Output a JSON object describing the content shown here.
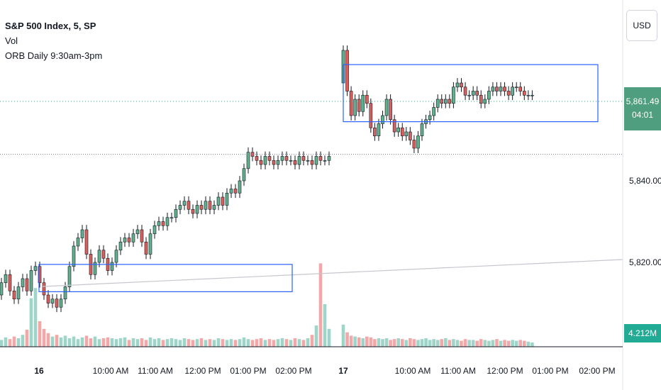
{
  "legend": {
    "title": "S&P 500 Index, 5, SP",
    "vol": "Vol",
    "orb": "ORB Daily 9:30am-3pm"
  },
  "currency_button": "USD",
  "last_price": {
    "value": "5,861.49",
    "countdown": "04:01",
    "color": "#4e9e7f"
  },
  "volume_tag": {
    "value": "4.212M",
    "color": "#22ab94"
  },
  "colors": {
    "up": "#62b08e",
    "down": "#d9605c",
    "vol_up": "#9fd5c9",
    "vol_down": "#f2a8a8",
    "orb_box": "#2962ff"
  },
  "chart_data": {
    "type": "candlestick",
    "symbol": "S&P 500 Index",
    "interval": "5",
    "exchange": "SP",
    "y_ticks": [
      "5,840.00",
      "5,820.00"
    ],
    "x_ticks": [
      "16",
      "10:00 AM",
      "11:00 AM",
      "12:00 PM",
      "01:00 PM",
      "02:00 PM",
      "17",
      "10:00 AM",
      "11:00 AM",
      "12:00 PM",
      "01:00 PM",
      "02:00 PM"
    ],
    "ylim": [
      5805,
      5875
    ],
    "prior_close": 5846.5,
    "orb_boxes": [
      {
        "day": "16",
        "high": 5819.5,
        "low": 5812.8
      },
      {
        "day": "17",
        "high": 5868.5,
        "low": 5854.5
      }
    ],
    "day16": {
      "closes": [
        5815,
        5817,
        5813,
        5811,
        5814,
        5816,
        5813,
        5818,
        5819,
        5815,
        5812,
        5810,
        5811,
        5809,
        5811,
        5814,
        5819,
        5824,
        5826,
        5828,
        5822,
        5817,
        5820,
        5823,
        5821,
        5818,
        5820,
        5823,
        5825,
        5826,
        5825,
        5827,
        5828,
        5825,
        5822,
        5827,
        5829,
        5830,
        5829,
        5831,
        5831,
        5833,
        5834,
        5835,
        5833,
        5832,
        5834,
        5833,
        5835,
        5833,
        5834,
        5836,
        5834,
        5837,
        5838,
        5837,
        5840,
        5843,
        5847,
        5846,
        5845,
        5844,
        5846,
        5845,
        5844,
        5845,
        5846,
        5845,
        5845,
        5844,
        5846,
        5845,
        5845,
        5844,
        5846,
        5845,
        5845,
        5846
      ],
      "volumes": [
        0.8,
        1.1,
        0.9,
        1.2,
        1.0,
        1.4,
        2.0,
        5.7,
        6.9,
        3.0,
        2.1,
        1.6,
        1.2,
        1.4,
        1.1,
        1.3,
        1.0,
        1.2,
        0.9,
        1.1,
        1.3,
        1.0,
        1.2,
        0.9,
        1.0,
        1.1,
        1.0,
        0.9,
        1.0,
        1.1,
        0.8,
        1.0,
        0.9,
        1.0,
        0.8,
        1.1,
        0.9,
        1.0,
        0.8,
        0.9,
        1.0,
        0.9,
        0.8,
        1.0,
        0.9,
        0.8,
        0.9,
        1.0,
        0.8,
        0.9,
        0.8,
        1.0,
        0.9,
        0.8,
        0.9,
        0.8,
        0.9,
        1.1,
        0.9,
        0.8,
        0.9,
        1.0,
        0.8,
        0.9,
        0.8,
        0.9,
        1.0,
        0.9,
        0.8,
        1.0,
        0.9,
        0.8,
        1.0,
        1.4,
        2.5,
        9.8,
        5.0,
        2.1
      ]
    },
    "day17": {
      "closes": [
        5872,
        5862,
        5856,
        5860,
        5857,
        5861,
        5859,
        5853,
        5851,
        5854,
        5856,
        5860,
        5855,
        5852,
        5853,
        5851,
        5852,
        5850,
        5848,
        5851,
        5854,
        5855,
        5856,
        5858,
        5860,
        5859,
        5860,
        5859,
        5863,
        5864,
        5863,
        5861,
        5861,
        5862,
        5861,
        5859,
        5860,
        5862,
        5863,
        5862,
        5863,
        5862,
        5861,
        5863,
        5863,
        5862,
        5861,
        5861,
        5861
      ],
      "volumes": [
        2.6,
        1.7,
        1.3,
        1.2,
        1.1,
        1.0,
        1.2,
        1.1,
        0.9,
        1.0,
        0.9,
        1.0,
        0.8,
        0.9,
        1.0,
        0.9,
        0.8,
        1.0,
        0.9,
        0.8,
        0.9,
        1.0,
        0.8,
        0.9,
        0.8,
        0.9,
        1.0,
        0.8,
        0.9,
        0.8,
        0.7,
        0.9,
        0.8,
        0.8,
        0.7,
        0.9,
        0.8,
        0.7,
        0.8,
        0.9,
        0.7,
        0.8,
        0.7,
        0.8,
        0.7,
        0.8,
        0.7,
        0.6,
        0.5
      ]
    }
  }
}
